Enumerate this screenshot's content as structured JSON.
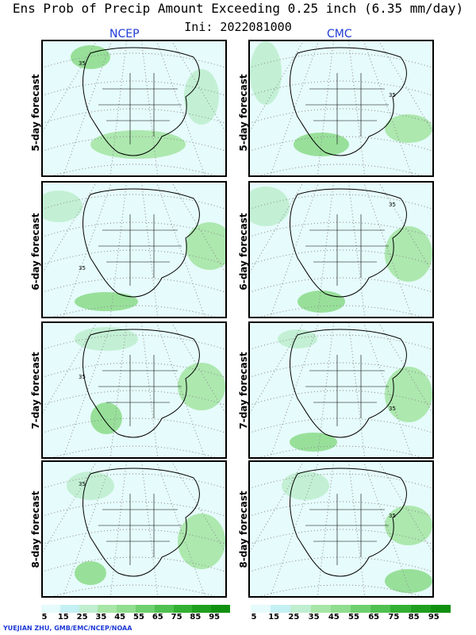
{
  "title": "Ens Prob of Precip Amount Exceeding 0.25 inch (6.35 mm/day)",
  "init": "Ini: 2022081000",
  "columns": [
    "NCEP",
    "CMC"
  ],
  "rows": [
    "5-day forecast",
    "6-day forecast",
    "7-day forecast",
    "8-day forecast"
  ],
  "contour_label": "35",
  "legend": {
    "labels": [
      "5",
      "15",
      "25",
      "35",
      "45",
      "55",
      "65",
      "75",
      "85",
      "95"
    ],
    "colors": [
      "#e6fbfb",
      "#c4f0f4",
      "#bfeed0",
      "#a6e6a6",
      "#8fdd8f",
      "#6fd06f",
      "#50c050",
      "#33b033",
      "#1f9f1f",
      "#109010"
    ]
  },
  "credit": "YUEJIAN ZHU, GMB/EMC/NCEP/NOAA"
}
